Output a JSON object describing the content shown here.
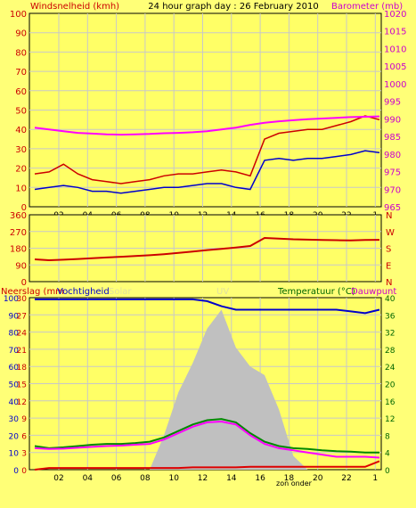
{
  "title": "24 hour graph day : 26 February 2010",
  "colors": {
    "background": "#ffff77",
    "plot_bg": "#ffff66",
    "grid": "#c8c8c8",
    "wind_gust": "#cc0000",
    "wind_avg": "#0000cc",
    "barometer": "#ff00ff",
    "direction": "#cc0000",
    "humidity": "#0000cc",
    "temperature": "#008800",
    "dewpoint": "#ff00ff",
    "rain": "#dd0000",
    "solar": "#c0c0c0",
    "label_red": "#cc0000",
    "label_magenta": "#cc00cc",
    "label_green": "#006600",
    "label_blue": "#0000cc",
    "label_faint": "#e0e0a0"
  },
  "x_ticks": [
    "02",
    "04",
    "06",
    "08",
    "10",
    "12",
    "14",
    "16",
    "18",
    "20",
    "22",
    "1"
  ],
  "zon_onder_label": "zon onder",
  "chart_data": [
    {
      "id": "wind-barometer",
      "type": "line",
      "left_axis": {
        "label": "Windsnelheid (kmh)",
        "ylim": [
          0,
          100
        ],
        "ticks": [
          "0",
          "10",
          "20",
          "30",
          "40",
          "50",
          "60",
          "70",
          "80",
          "90",
          "100"
        ]
      },
      "right_axis": {
        "label": "Barometer (mb)",
        "ylim": [
          965,
          1020
        ],
        "ticks": [
          "965",
          "970",
          "975",
          "980",
          "985",
          "990",
          "995",
          "1000",
          "1005",
          "1010",
          "1015",
          "1020"
        ]
      },
      "x": [
        1,
        2,
        3,
        4,
        5,
        6,
        7,
        8,
        9,
        10,
        11,
        12,
        13,
        14,
        15,
        16,
        17,
        18,
        19,
        20,
        21,
        22,
        23,
        24,
        25
      ],
      "series": [
        {
          "key": "wind_gust",
          "axis": "left",
          "values": [
            17,
            18,
            22,
            17,
            14,
            13,
            12,
            13,
            14,
            16,
            17,
            17,
            18,
            19,
            18,
            16,
            35,
            38,
            39,
            40,
            40,
            42,
            44,
            47,
            45
          ]
        },
        {
          "key": "wind_avg",
          "axis": "left",
          "values": [
            9,
            10,
            11,
            10,
            8,
            8,
            7,
            8,
            9,
            10,
            10,
            11,
            12,
            12,
            10,
            9,
            24,
            25,
            24,
            25,
            25,
            26,
            27,
            29,
            28
          ]
        },
        {
          "key": "barometer",
          "axis": "right",
          "values": [
            987.5,
            987.0,
            986.5,
            986.0,
            985.8,
            985.6,
            985.5,
            985.6,
            985.7,
            985.9,
            986.0,
            986.2,
            986.5,
            987.0,
            987.5,
            988.3,
            988.9,
            989.3,
            989.6,
            989.9,
            990.1,
            990.3,
            990.5,
            990.6,
            990.7
          ]
        }
      ]
    },
    {
      "id": "wind-direction",
      "type": "line",
      "left_axis": {
        "ticks": [
          "0",
          "90",
          "180",
          "270",
          "360"
        ],
        "ylim": [
          0,
          360
        ]
      },
      "right_axis": {
        "ticks": [
          "N",
          "E",
          "S",
          "W",
          "N"
        ]
      },
      "x": [
        1,
        2,
        3,
        4,
        5,
        6,
        7,
        8,
        9,
        10,
        11,
        12,
        13,
        14,
        15,
        16,
        17,
        18,
        19,
        20,
        21,
        22,
        23,
        24,
        25
      ],
      "series": [
        {
          "key": "direction",
          "axis": "left",
          "values": [
            120,
            115,
            118,
            122,
            126,
            130,
            134,
            138,
            142,
            148,
            155,
            162,
            170,
            176,
            184,
            192,
            235,
            232,
            228,
            226,
            224,
            223,
            222,
            224,
            225
          ]
        }
      ]
    },
    {
      "id": "rain-humidity-temp",
      "type": "line",
      "labels": {
        "rain": "Neerslag (mm",
        "humidity": "Vochtigheid",
        "solar": "Solar",
        "uv": "UV",
        "temperature": "Temperatuur (°C)",
        "dewpoint": "Dauwpunt"
      },
      "left_axis": {
        "ylim": [
          0,
          100
        ],
        "ticks": [
          "0",
          "10",
          "20",
          "30",
          "40",
          "50",
          "60",
          "70",
          "80",
          "90",
          "100"
        ]
      },
      "left_axis_2": {
        "ylim": [
          0,
          30
        ],
        "ticks": [
          "0",
          "3",
          "6",
          "9",
          "12",
          "15",
          "18",
          "21",
          "24",
          "27",
          "30"
        ]
      },
      "right_axis": {
        "ylim": [
          0,
          40
        ],
        "ticks": [
          "0",
          "4",
          "8",
          "12",
          "16",
          "20",
          "24",
          "28",
          "32",
          "36",
          "40"
        ]
      },
      "x": [
        1,
        2,
        3,
        4,
        5,
        6,
        7,
        8,
        9,
        10,
        11,
        12,
        13,
        14,
        15,
        16,
        17,
        18,
        19,
        20,
        21,
        22,
        23,
        24,
        25
      ],
      "series": [
        {
          "key": "humidity",
          "axis": "left",
          "values": [
            99,
            99,
            99,
            99,
            99,
            99,
            99,
            99,
            99,
            99,
            99,
            99,
            98,
            95,
            93,
            93,
            93,
            93,
            93,
            93,
            93,
            93,
            92,
            91,
            93
          ]
        },
        {
          "key": "temperature",
          "axis": "right",
          "values": [
            5.5,
            5,
            5.2,
            5.5,
            5.8,
            6,
            6,
            6.2,
            6.5,
            7.5,
            9,
            10.5,
            11.5,
            11.8,
            11,
            8.5,
            6.5,
            5.5,
            5,
            4.8,
            4.5,
            4.3,
            4.2,
            4,
            4
          ]
        },
        {
          "key": "dewpoint",
          "axis": "right",
          "values": [
            5,
            4.8,
            4.9,
            5.1,
            5.3,
            5.5,
            5.6,
            5.8,
            6,
            7,
            8.5,
            10,
            11,
            11.2,
            10.5,
            8,
            6,
            5,
            4.5,
            4,
            3.5,
            3,
            3,
            3,
            2.8
          ]
        },
        {
          "key": "rain",
          "axis": "left_2",
          "values": [
            0,
            0.3,
            0.3,
            0.3,
            0.3,
            0.3,
            0.3,
            0.3,
            0.3,
            0.3,
            0.3,
            0.4,
            0.4,
            0.4,
            0.4,
            0.5,
            0.5,
            0.5,
            0.5,
            0.5,
            0.5,
            0.5,
            0.5,
            0.5,
            1.5
          ]
        },
        {
          "key": "solar",
          "axis": "area",
          "values": [
            0,
            0,
            0,
            0,
            0,
            0,
            0,
            0,
            0,
            20,
            45,
            62,
            82,
            93,
            71,
            60,
            55,
            35,
            8,
            0,
            0,
            0,
            0,
            0,
            0
          ]
        }
      ]
    }
  ]
}
